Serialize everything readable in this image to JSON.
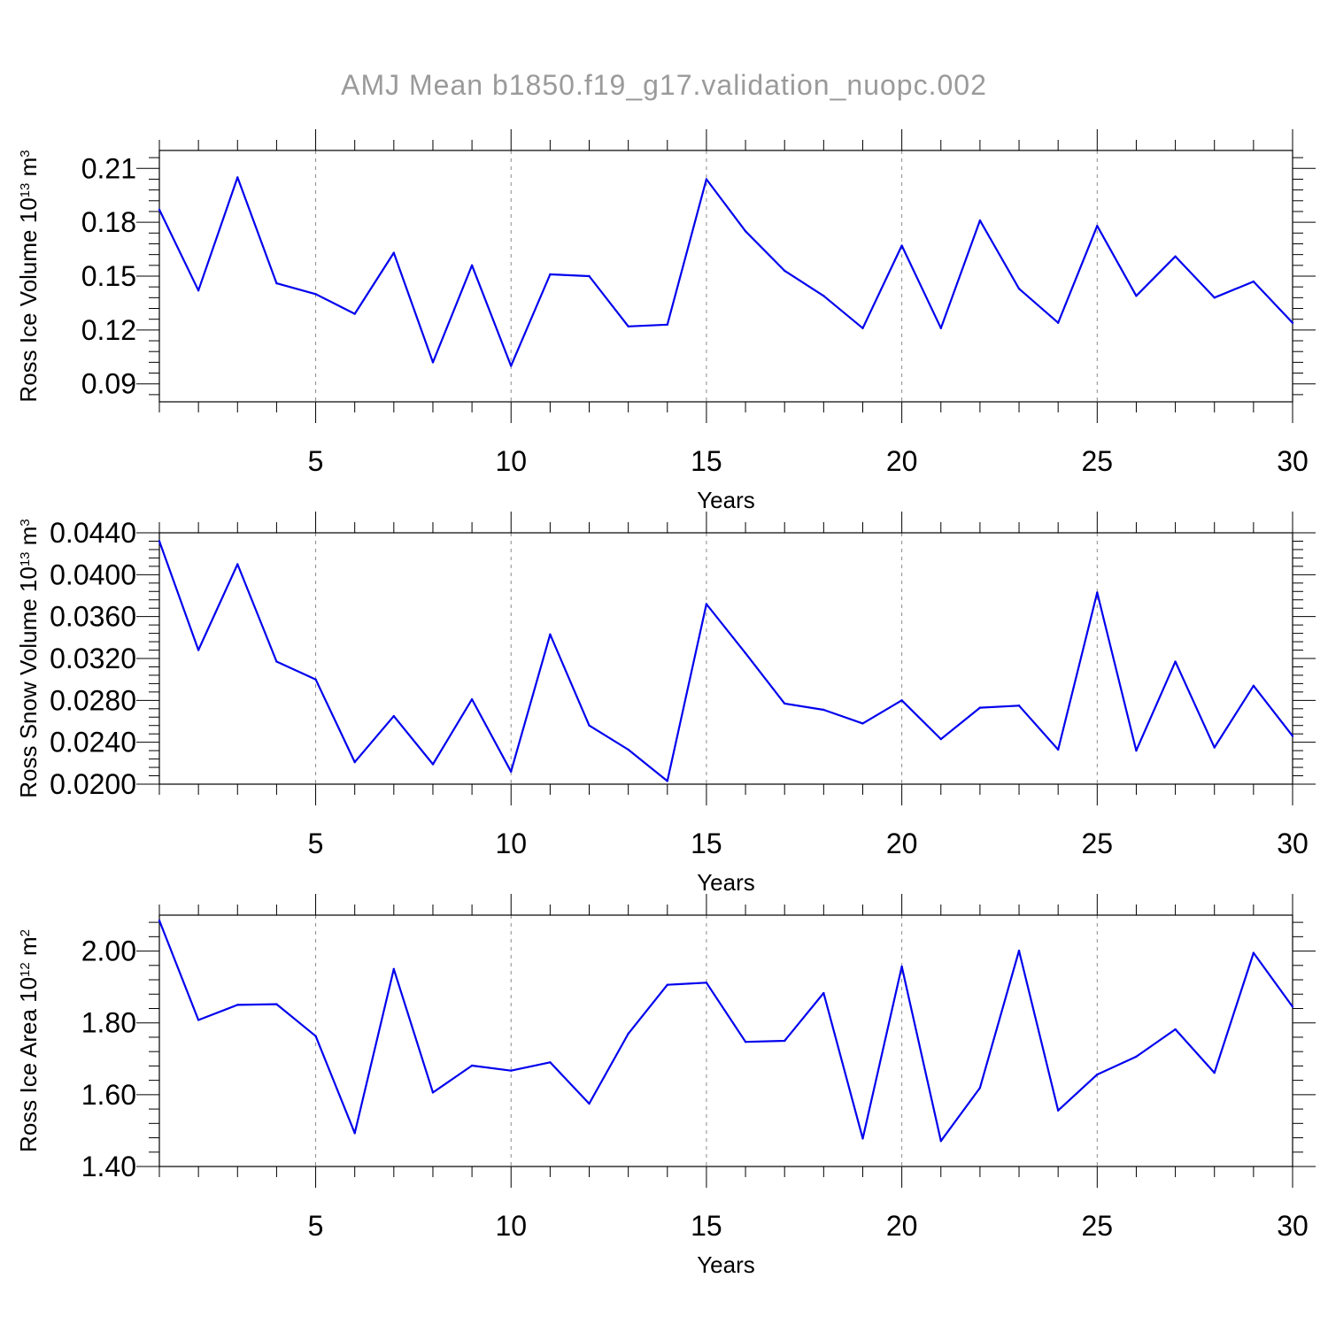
{
  "title": "AMJ Mean b1850.f19_g17.validation_nuopc.002",
  "colors": {
    "series": "#0000ee",
    "title": "#9a9a9a",
    "grid": "#8a8a8a"
  },
  "chart_data": [
    {
      "type": "line",
      "title": "",
      "xlabel": "Years",
      "ylabel": {
        "base": "Ross Ice Volume 10",
        "exp": "13",
        "unit": " m",
        "unit_exp": "3"
      },
      "xlim": [
        1,
        30
      ],
      "xticks": [
        "5",
        "10",
        "15",
        "20",
        "25",
        "30"
      ],
      "ylim": [
        0.08,
        0.22
      ],
      "yticks": [
        "0.09",
        "0.12",
        "0.15",
        "0.18",
        "0.21"
      ],
      "grid": "vertical-dashed",
      "x": [
        1,
        2,
        3,
        4,
        5,
        6,
        7,
        8,
        9,
        10,
        11,
        12,
        13,
        14,
        15,
        16,
        17,
        18,
        19,
        20,
        21,
        22,
        23,
        24,
        25,
        26,
        27,
        28,
        29,
        30
      ],
      "series": [
        {
          "values": [
            0.187,
            0.142,
            0.205,
            0.146,
            0.14,
            0.129,
            0.163,
            0.102,
            0.156,
            0.1,
            0.151,
            0.15,
            0.122,
            0.123,
            0.204,
            0.175,
            0.153,
            0.139,
            0.121,
            0.167,
            0.121,
            0.181,
            0.143,
            0.124,
            0.178,
            0.139,
            0.161,
            0.138,
            0.147,
            0.124
          ]
        }
      ]
    },
    {
      "type": "line",
      "title": "",
      "xlabel": "Years",
      "ylabel": {
        "base": "Ross Snow Volume 10",
        "exp": "13",
        "unit": " m",
        "unit_exp": "3"
      },
      "xlim": [
        1,
        30
      ],
      "xticks": [
        "5",
        "10",
        "15",
        "20",
        "25",
        "30"
      ],
      "ylim": [
        0.02,
        0.044
      ],
      "yticks": [
        "0.0200",
        "0.0240",
        "0.0280",
        "0.0320",
        "0.0360",
        "0.0400",
        "0.0440"
      ],
      "grid": "vertical-dashed",
      "x": [
        1,
        2,
        3,
        4,
        5,
        6,
        7,
        8,
        9,
        10,
        11,
        12,
        13,
        14,
        15,
        16,
        17,
        18,
        19,
        20,
        21,
        22,
        23,
        24,
        25,
        26,
        27,
        28,
        29,
        30
      ],
      "series": [
        {
          "values": [
            0.0432,
            0.0328,
            0.041,
            0.0317,
            0.03,
            0.0221,
            0.0265,
            0.0219,
            0.0281,
            0.0212,
            0.0343,
            0.0256,
            0.0233,
            0.0203,
            0.0372,
            0.0325,
            0.0277,
            0.0271,
            0.0258,
            0.028,
            0.0243,
            0.0273,
            0.0275,
            0.0233,
            0.0383,
            0.0232,
            0.0317,
            0.0235,
            0.0294,
            0.0246
          ]
        }
      ]
    },
    {
      "type": "line",
      "title": "",
      "xlabel": "Years",
      "ylabel": {
        "base": "Ross Ice Area 10",
        "exp": "12",
        "unit": " m",
        "unit_exp": "2"
      },
      "xlim": [
        1,
        30
      ],
      "xticks": [
        "5",
        "10",
        "15",
        "20",
        "25",
        "30"
      ],
      "ylim": [
        1.4,
        2.1
      ],
      "yticks": [
        "1.40",
        "1.60",
        "1.80",
        "2.00"
      ],
      "grid": "vertical-dashed",
      "x": [
        1,
        2,
        3,
        4,
        5,
        6,
        7,
        8,
        9,
        10,
        11,
        12,
        13,
        14,
        15,
        16,
        17,
        18,
        19,
        20,
        21,
        22,
        23,
        24,
        25,
        26,
        27,
        28,
        29,
        30
      ],
      "series": [
        {
          "values": [
            2.085,
            1.808,
            1.85,
            1.852,
            1.763,
            1.493,
            1.95,
            1.606,
            1.681,
            1.667,
            1.69,
            1.575,
            1.77,
            1.906,
            1.912,
            1.747,
            1.75,
            1.883,
            1.478,
            1.957,
            1.471,
            1.619,
            2.001,
            1.556,
            1.656,
            1.706,
            1.782,
            1.661,
            1.995,
            1.845
          ]
        }
      ]
    }
  ]
}
